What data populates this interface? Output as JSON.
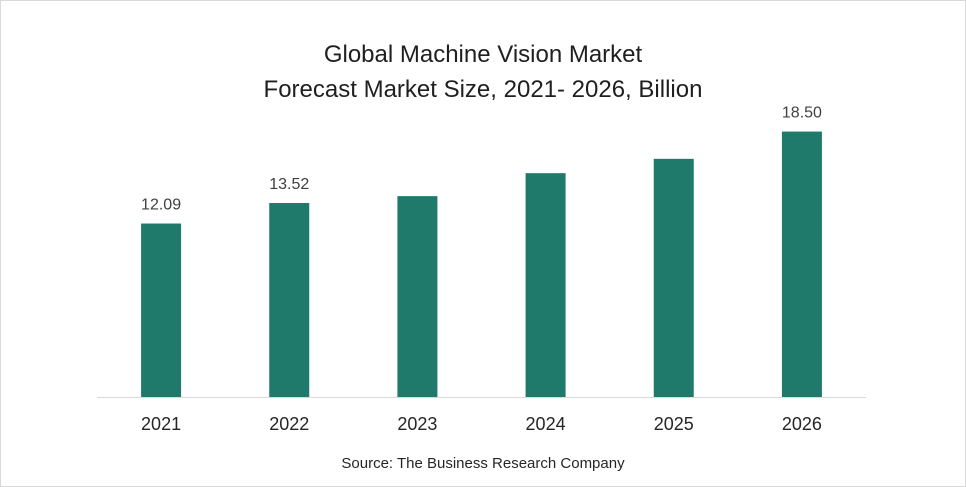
{
  "chart_data": {
    "type": "bar",
    "title": "Global Machine Vision Market",
    "subtitle": "Forecast Market Size, 2021- 2026, Billion",
    "categories": [
      "2021",
      "2022",
      "2023",
      "2024",
      "2025",
      "2026"
    ],
    "values": [
      12.09,
      13.52,
      14.0,
      15.6,
      16.6,
      18.5
    ],
    "data_labels": [
      "12.09",
      "13.52",
      "",
      "",
      "",
      "18.50"
    ],
    "xlabel": "",
    "ylabel": "",
    "ylim": [
      0,
      23
    ],
    "grid": false,
    "bar_color": "#1f7a6c"
  },
  "source": "Source: The Business Research Company"
}
